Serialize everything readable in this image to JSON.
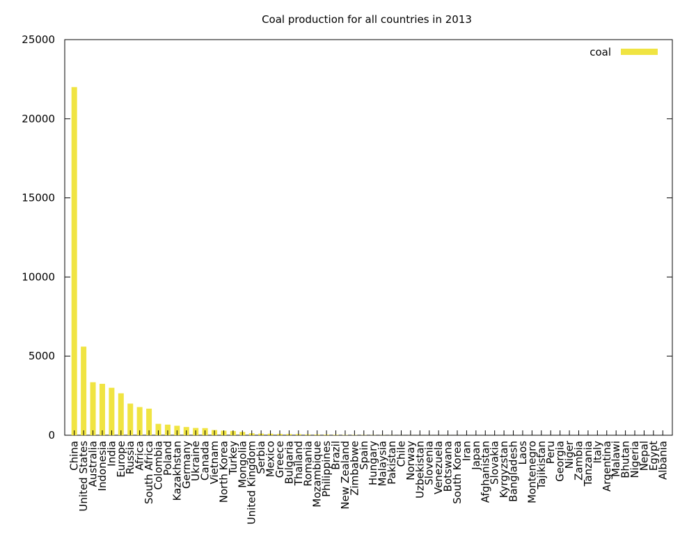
{
  "chart_data": {
    "type": "bar",
    "title": "Coal production for all countries in 2013",
    "xlabel": "",
    "ylabel": "",
    "ylim": [
      0,
      25000
    ],
    "yticks": [
      0,
      5000,
      10000,
      15000,
      20000,
      25000
    ],
    "grid": false,
    "legend_position": "top-right",
    "series": [
      {
        "name": "coal",
        "color": "#f0e442",
        "values": [
          22000,
          5600,
          3350,
          3250,
          3000,
          2650,
          2000,
          1780,
          1680,
          720,
          670,
          600,
          520,
          460,
          450,
          330,
          290,
          270,
          210,
          120,
          100,
          95,
          80,
          75,
          70,
          50,
          45,
          40,
          30,
          20,
          18,
          15,
          12,
          10,
          8,
          5,
          4,
          3,
          3,
          2,
          2,
          2,
          1,
          1,
          1,
          1,
          1,
          1,
          1,
          1,
          1,
          1,
          0,
          0,
          0,
          0,
          0,
          0,
          0,
          0,
          0,
          0,
          0,
          0
        ]
      }
    ],
    "categories": [
      "China",
      "United States",
      "Australia",
      "Indonesia",
      "India",
      "Europe",
      "Russia",
      "Africa",
      "South Africa",
      "Colombia",
      "Poland",
      "Kazakhstan",
      "Germany",
      "Ukraine",
      "Canada",
      "Vietnam",
      "North Korea",
      "Turkey",
      "Mongolia",
      "United Kingdom",
      "Serbia",
      "Mexico",
      "Greece",
      "Bulgaria",
      "Thailand",
      "Romania",
      "Mozambique",
      "Philippines",
      "Brazil",
      "New Zealand",
      "Zimbabwe",
      "Spain",
      "Hungary",
      "Malaysia",
      "Pakistan",
      "Chile",
      "Norway",
      "Uzbekistan",
      "Slovenia",
      "Venezuela",
      "Botswana",
      "South Korea",
      "Iran",
      "Japan",
      "Afghanistan",
      "Slovakia",
      "Kyrgyzstan",
      "Bangladesh",
      "Laos",
      "Montenegro",
      "Tajikistan",
      "Peru",
      "Georgia",
      "Niger",
      "Zambia",
      "Tanzania",
      "Italy",
      "Argentina",
      "Malawi",
      "Bhutan",
      "Nigeria",
      "Nepal",
      "Egypt",
      "Albania"
    ]
  }
}
